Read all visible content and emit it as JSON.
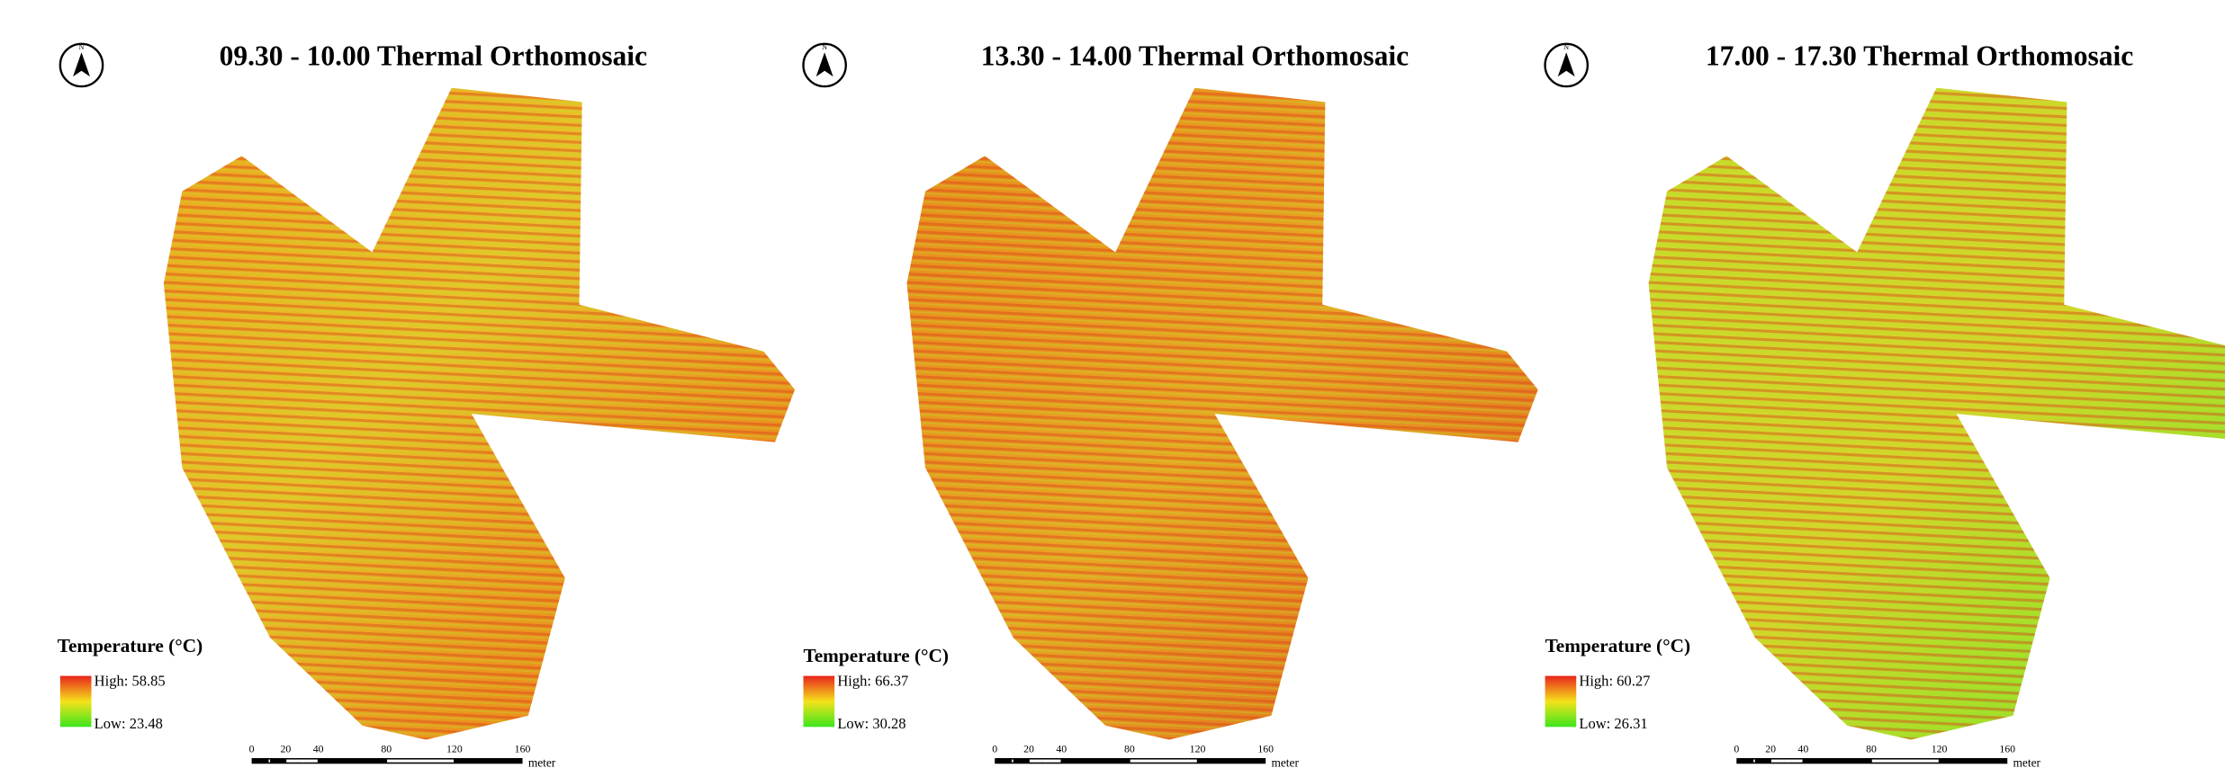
{
  "panels": [
    {
      "title": "09.30 - 10.00 Thermal Orthomosaic",
      "legend": {
        "title": "Temperature (°C)",
        "high": "High: 58.85",
        "low": "Low: 23.48"
      },
      "scale_bar": {
        "ticks": [
          "0",
          "20",
          "40",
          "80",
          "120",
          "160"
        ],
        "unit": "meter"
      }
    },
    {
      "title": "13.30 - 14.00 Thermal Orthomosaic",
      "legend": {
        "title": "Temperature (°C)",
        "high": "High: 66.37",
        "low": "Low: 30.28"
      },
      "scale_bar": {
        "ticks": [
          "0",
          "20",
          "40",
          "80",
          "120",
          "160"
        ],
        "unit": "meter"
      }
    },
    {
      "title": "17.00 - 17.30 Thermal Orthomosaic",
      "legend": {
        "title": "Temperature (°C)",
        "high": "High: 60.27",
        "low": "Low: 26.31"
      },
      "scale_bar": {
        "ticks": [
          "0",
          "20",
          "40",
          "80",
          "120",
          "160"
        ],
        "unit": "meter"
      }
    }
  ]
}
